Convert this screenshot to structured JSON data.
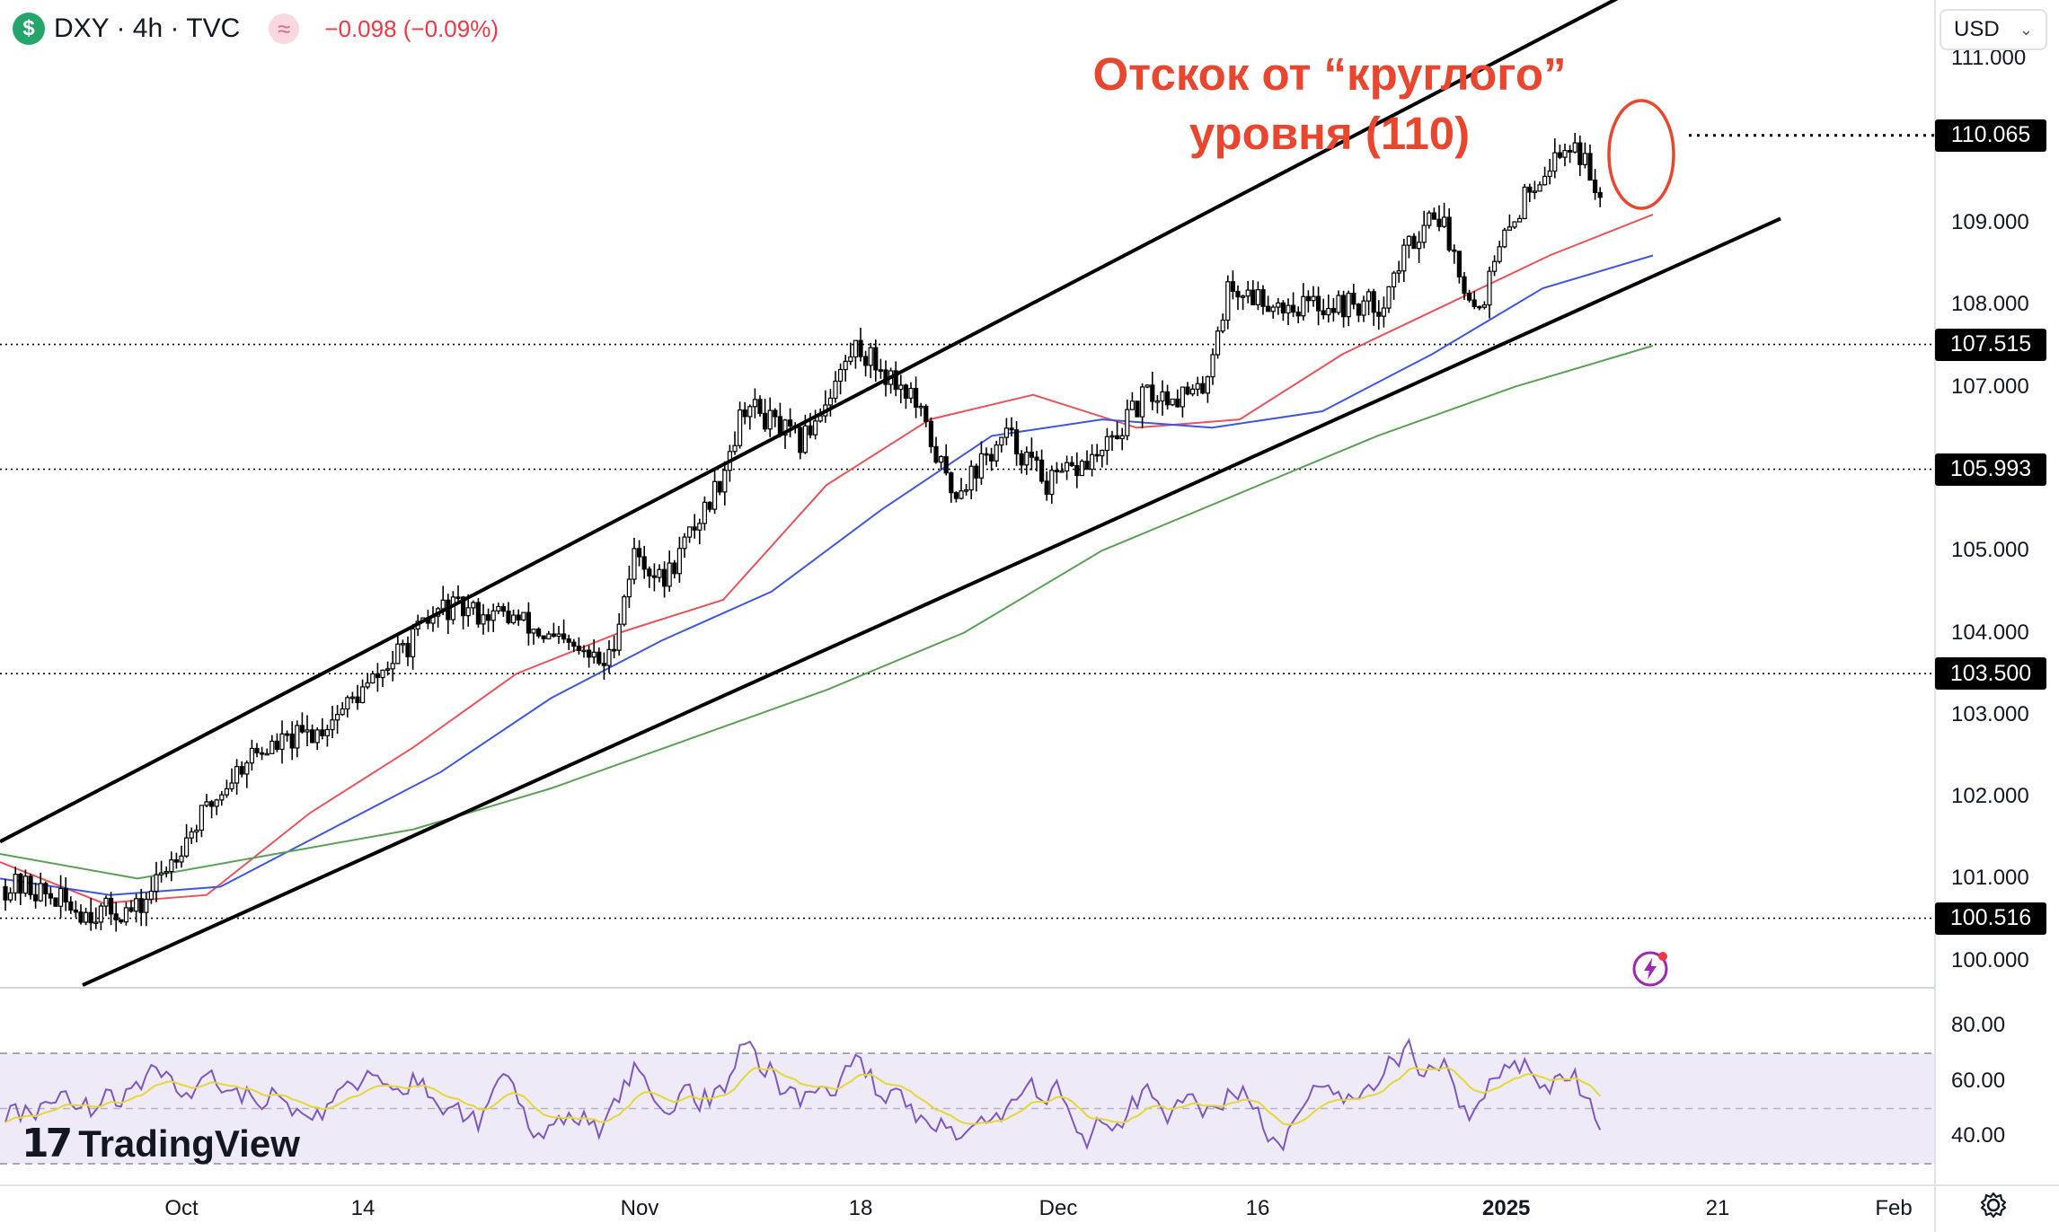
{
  "header": {
    "symbol_badge": "$",
    "title": "DXY · 4h · TVC",
    "indicator_glyph": "≈",
    "change": "−0.098 (−0.09%)"
  },
  "currency_select": {
    "selected": "USD"
  },
  "annotation": {
    "line1": "Отскок от “круглого”",
    "line2": "уровня (110)"
  },
  "price_axis": {
    "ticks": [
      "111.000",
      "109.000",
      "108.000",
      "107.000",
      "105.000",
      "104.000",
      "103.000",
      "102.000",
      "101.000",
      "100.000"
    ]
  },
  "rsi_axis": {
    "ticks": [
      "80.00",
      "60.00",
      "40.00"
    ]
  },
  "time_axis": {
    "labels": [
      "Oct",
      "14",
      "Nov",
      "18",
      "Dec",
      "16",
      "2025",
      "21",
      "Feb"
    ]
  },
  "branding": {
    "logo_mark": "17",
    "name": "TradingView"
  },
  "colors": {
    "candle": "#000000",
    "ma_fast": "#e8545a",
    "ma_mid": "#3e56e0",
    "ma_slow": "#5aa157",
    "rsi": "#7e57c2",
    "rsi_ma": "#e5d834",
    "annotation": "#e8462e"
  },
  "icons": [
    "dollar-icon",
    "indicator-icon",
    "chevron-down-icon",
    "lightning-icon",
    "gear-icon"
  ],
  "chart_data": {
    "type": "candlestick",
    "symbol": "DXY",
    "interval": "4h",
    "ylim": [
      99.7,
      111.2
    ],
    "y_ticks": [
      100,
      101,
      102,
      103,
      104,
      105,
      107,
      108,
      109,
      111
    ],
    "x_labels": [
      "Oct",
      "14",
      "Nov",
      "18",
      "Dec",
      "16",
      "2025",
      "21",
      "Feb"
    ],
    "horizontal_levels": [
      {
        "label": "110.065",
        "value": 110.065
      },
      {
        "label": "107.515",
        "value": 107.515
      },
      {
        "label": "105.993",
        "value": 105.993
      },
      {
        "label": "103.500",
        "value": 103.5
      },
      {
        "label": "100.516",
        "value": 100.516
      }
    ],
    "price_path": [
      [
        "2024-09-23",
        100.9
      ],
      [
        "2024-09-27",
        100.6
      ],
      [
        "2024-10-01",
        100.6
      ],
      [
        "2024-10-04",
        101.4
      ],
      [
        "2024-10-09",
        102.5
      ],
      [
        "2024-10-14",
        102.8
      ],
      [
        "2024-10-18",
        103.4
      ],
      [
        "2024-10-23",
        104.3
      ],
      [
        "2024-10-28",
        104.2
      ],
      [
        "2024-10-31",
        103.9
      ],
      [
        "2024-11-04",
        103.6
      ],
      [
        "2024-11-06",
        105.0
      ],
      [
        "2024-11-08",
        104.6
      ],
      [
        "2024-11-12",
        105.8
      ],
      [
        "2024-11-14",
        106.8
      ],
      [
        "2024-11-18",
        106.3
      ],
      [
        "2024-11-22",
        107.5
      ],
      [
        "2024-11-26",
        106.9
      ],
      [
        "2024-11-29",
        105.7
      ],
      [
        "2024-12-03",
        106.4
      ],
      [
        "2024-12-06",
        105.8
      ],
      [
        "2024-12-10",
        106.2
      ],
      [
        "2024-12-13",
        106.9
      ],
      [
        "2024-12-17",
        106.9
      ],
      [
        "2024-12-19",
        108.2
      ],
      [
        "2024-12-23",
        108.0
      ],
      [
        "2024-12-30",
        108.0
      ],
      [
        "2025-01-01",
        108.7
      ],
      [
        "2025-01-03",
        109.2
      ],
      [
        "2025-01-06",
        107.9
      ],
      [
        "2025-01-08",
        108.8
      ],
      [
        "2025-01-10",
        109.5
      ],
      [
        "2025-01-13",
        110.0
      ],
      [
        "2025-01-15",
        109.3
      ]
    ],
    "series": [
      {
        "name": "EMA fast",
        "values": [
          101.2,
          100.7,
          100.8,
          101.8,
          102.6,
          103.5,
          104.0,
          104.4,
          105.8,
          106.6,
          106.9,
          106.5,
          106.6,
          107.4,
          108.0,
          108.6,
          109.1
        ]
      },
      {
        "name": "EMA mid",
        "values": [
          101.0,
          100.8,
          100.9,
          101.6,
          102.3,
          103.2,
          103.9,
          104.5,
          105.5,
          106.4,
          106.6,
          106.5,
          106.7,
          107.4,
          108.2,
          108.6
        ]
      },
      {
        "name": "EMA slow",
        "values": [
          101.3,
          101.0,
          101.3,
          101.6,
          102.1,
          102.7,
          103.3,
          104.0,
          105.0,
          105.7,
          106.4,
          107.0,
          107.5
        ]
      }
    ],
    "channel": {
      "upper": [
        [
          -0.5,
          101.5
        ],
        [
          1.0,
          111.7
        ]
      ],
      "lower": [
        [
          -0.5,
          99.4
        ],
        [
          1.05,
          109.0
        ]
      ]
    },
    "rsi": {
      "ylim": [
        30,
        90
      ],
      "ticks": [
        80,
        60,
        40
      ],
      "band": [
        70,
        30
      ],
      "midline": 50
    }
  }
}
